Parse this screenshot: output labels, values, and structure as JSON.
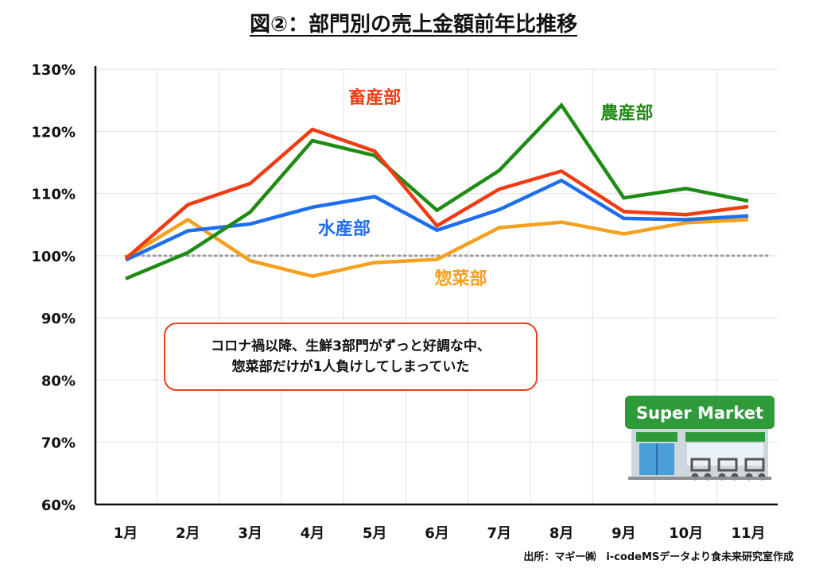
{
  "title": "図②：部門別の売上金額前年比推移",
  "annotation": {
    "line1": "コロナ禍以降、生鮮3部門がずっと好調な中、",
    "line2": "惣菜部だけが1人負けしてしまっていた"
  },
  "source": "出所：マギー㈱　i-codeMSデータより食未来研究室作成",
  "store_sign": "Super Market",
  "colors": {
    "chikusan": "#f03c14",
    "nousan": "#1e8c14",
    "suisan": "#1e6ef0",
    "souzai": "#f5a01e",
    "reference": "#a0a0a0"
  },
  "chart_data": {
    "type": "line",
    "title": "図②：部門別の売上金額前年比推移",
    "categories": [
      "1月",
      "2月",
      "3月",
      "4月",
      "5月",
      "6月",
      "7月",
      "8月",
      "9月",
      "10月",
      "11月"
    ],
    "yticks": [
      "60%",
      "70%",
      "80%",
      "90%",
      "100%",
      "110%",
      "120%",
      "130%"
    ],
    "ylim": [
      60,
      130
    ],
    "reference_line": 100,
    "grid": true,
    "series": [
      {
        "name": "畜産部",
        "key": "chikusan",
        "values": [
          99.5,
          108.2,
          111.6,
          120.3,
          116.8,
          104.8,
          110.7,
          113.6,
          107.1,
          106.6,
          107.9
        ]
      },
      {
        "name": "農産部",
        "key": "nousan",
        "values": [
          96.3,
          100.5,
          107.0,
          118.5,
          116.1,
          107.3,
          113.7,
          124.2,
          109.3,
          110.8,
          108.8
        ]
      },
      {
        "name": "水産部",
        "key": "suisan",
        "values": [
          99.3,
          104.0,
          105.1,
          107.8,
          109.5,
          104.1,
          107.4,
          112.1,
          106.0,
          105.8,
          106.4
        ]
      },
      {
        "name": "惣菜部",
        "key": "souzai",
        "values": [
          99.7,
          105.8,
          99.2,
          96.7,
          98.9,
          99.4,
          104.5,
          105.4,
          103.5,
          105.3,
          105.8
        ]
      }
    ]
  }
}
